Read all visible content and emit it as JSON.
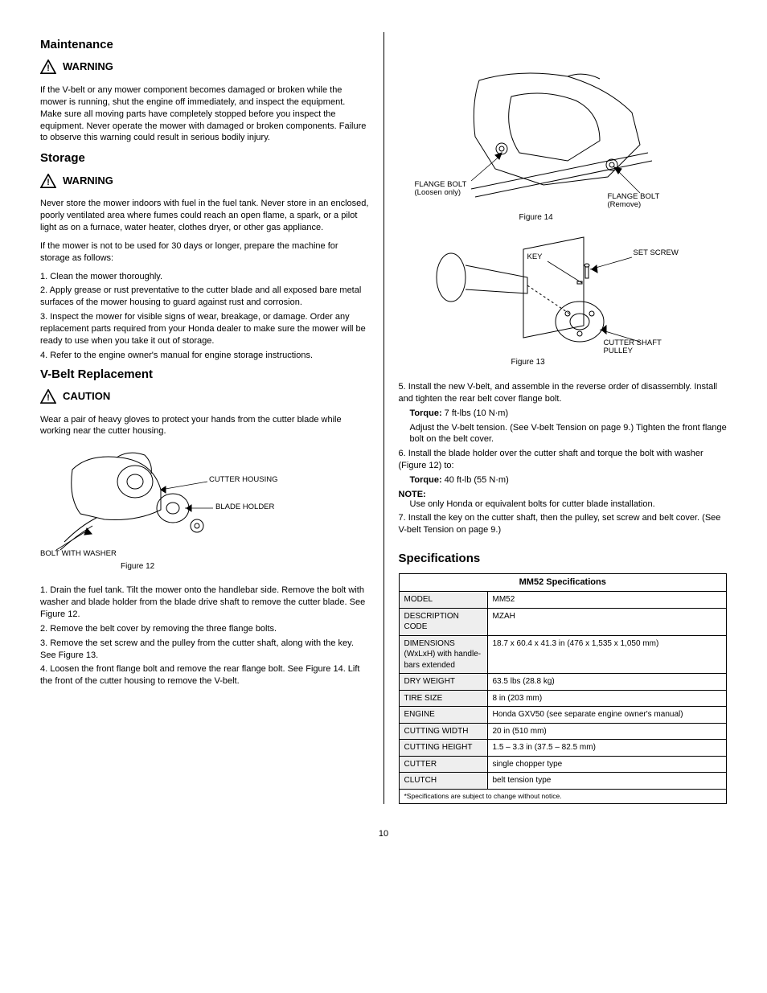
{
  "left": {
    "title": "Maintenance",
    "warn1_label": "WARNING",
    "warn1_text": "If the V-belt or any mower component becomes damaged or broken while the mower is running, shut the engine off immediately, and inspect the equipment. Make sure all moving parts have completely stopped before you inspect the equipment. Never operate the mower with damaged or broken components. Failure to observe this warning could result in serious bodily injury.",
    "storage_title": "Storage",
    "warn2_label": "WARNING",
    "warn2_text": "Never store the mower indoors with fuel in the fuel tank. Never store in an enclosed, poorly ventilated area where fumes could reach an open flame, a spark, or a pilot light as on a furnace, water heater, clothes dryer, or other gas appliance.",
    "storage_p1": "If the mower is not to be used for 30 days or longer, prepare the machine for storage as follows:",
    "storage_s1": "1. Clean the mower thoroughly.",
    "storage_s2": "2. Apply grease or rust preventative to the cutter blade and all exposed bare metal surfaces of the mower housing to guard against rust and corrosion.",
    "storage_s3": "3. Inspect the mower for visible signs of wear, breakage, or damage. Order any replacement parts required from your Honda dealer to make sure the mower will be ready to use when you take it out of storage.",
    "storage_s4": "4. Refer to the engine owner's manual for engine storage instructions.",
    "vbelt_title": "V-Belt Replacement",
    "warn3_label": "CAUTION",
    "warn3_text": "Wear a pair of heavy gloves to protect your hands from the cutter blade while working near the cutter housing.",
    "fig12_caption": "Figure 12",
    "fig12_lbl1": "CUTTER HOUSING",
    "fig12_lbl2": "BLADE HOLDER",
    "fig12_lbl3": "BOLT WITH WASHER",
    "vbelt_s1": "1. Drain the fuel tank. Tilt the mower onto the handlebar side. Remove the bolt with washer and blade holder from the blade drive shaft to remove the cutter blade. See Figure 12.",
    "vbelt_s2": "2. Remove the belt cover by removing the three flange bolts.",
    "vbelt_s3": "3. Remove the set screw and the pulley from the cutter shaft, along with the key. See Figure 13.",
    "vbelt_s4": "4. Loosen the front flange bolt and remove the rear flange bolt. See Figure 14. Lift the front of the cutter housing to remove the V-belt."
  },
  "right": {
    "fig14_caption": "Figure 14",
    "fig14_lbl1": "FLANGE BOLT (Loosen only)",
    "fig14_lbl2": "FLANGE BOLT (Remove)",
    "fig13_caption": "Figure 13",
    "fig13_lbl1": "SET SCREW",
    "fig13_lbl2": "KEY",
    "fig13_lbl3": "CUTTER SHAFT PULLEY",
    "repl_s5_a": "5. Install the new V-belt, and assemble in the reverse order of disassembly. Install and tighten the rear belt cover flange bolt.",
    "torque1_label": "Torque:",
    "torque1_val": " 7 ft-lbs (10 N·m)",
    "repl_s5_b": "Adjust the V-belt tension. (See V-belt Tension on page 9.) Tighten the front flange bolt on the belt cover.",
    "repl_s6": "6. Install the blade holder over the cutter shaft and torque the bolt with washer (Figure 12) to:",
    "torque2_label": "Torque:",
    "torque2_val": " 40 ft-lb (55 N·m)",
    "note_label": "NOTE:",
    "note_text": "Use only Honda or equivalent bolts for cutter blade installation.",
    "repl_s7": "7. Install the key on the cutter shaft, then the pulley, set screw and belt cover. (See V-belt Tension on page 9.)",
    "spec_title": "Specifications",
    "table_header": "MM52 Specifications",
    "rows": [
      {
        "k": "MODEL",
        "v": "MM52"
      },
      {
        "k": "DESCRIPTION CODE",
        "v": "MZAH"
      },
      {
        "k": "DIMENSIONS (WxLxH) with handle-bars extended",
        "v": "18.7 x 60.4 x 41.3 in (476 x 1,535 x 1,050 mm)"
      },
      {
        "k": "DRY WEIGHT",
        "v": "63.5 lbs   (28.8 kg)"
      },
      {
        "k": "TIRE SIZE",
        "v": "8 in (203 mm)"
      },
      {
        "k": "ENGINE",
        "v": "Honda GXV50 (see separate engine owner's manual)"
      },
      {
        "k": "CUTTING WIDTH",
        "v": "20 in (510 mm)"
      },
      {
        "k": "CUTTING HEIGHT",
        "v": "1.5 – 3.3 in (37.5 – 82.5 mm)"
      },
      {
        "k": "CUTTER",
        "v": "single chopper type"
      },
      {
        "k": "CLUTCH",
        "v": "belt tension type"
      }
    ],
    "footnote": "*Specifications are subject to change without notice."
  },
  "page_num": "10"
}
